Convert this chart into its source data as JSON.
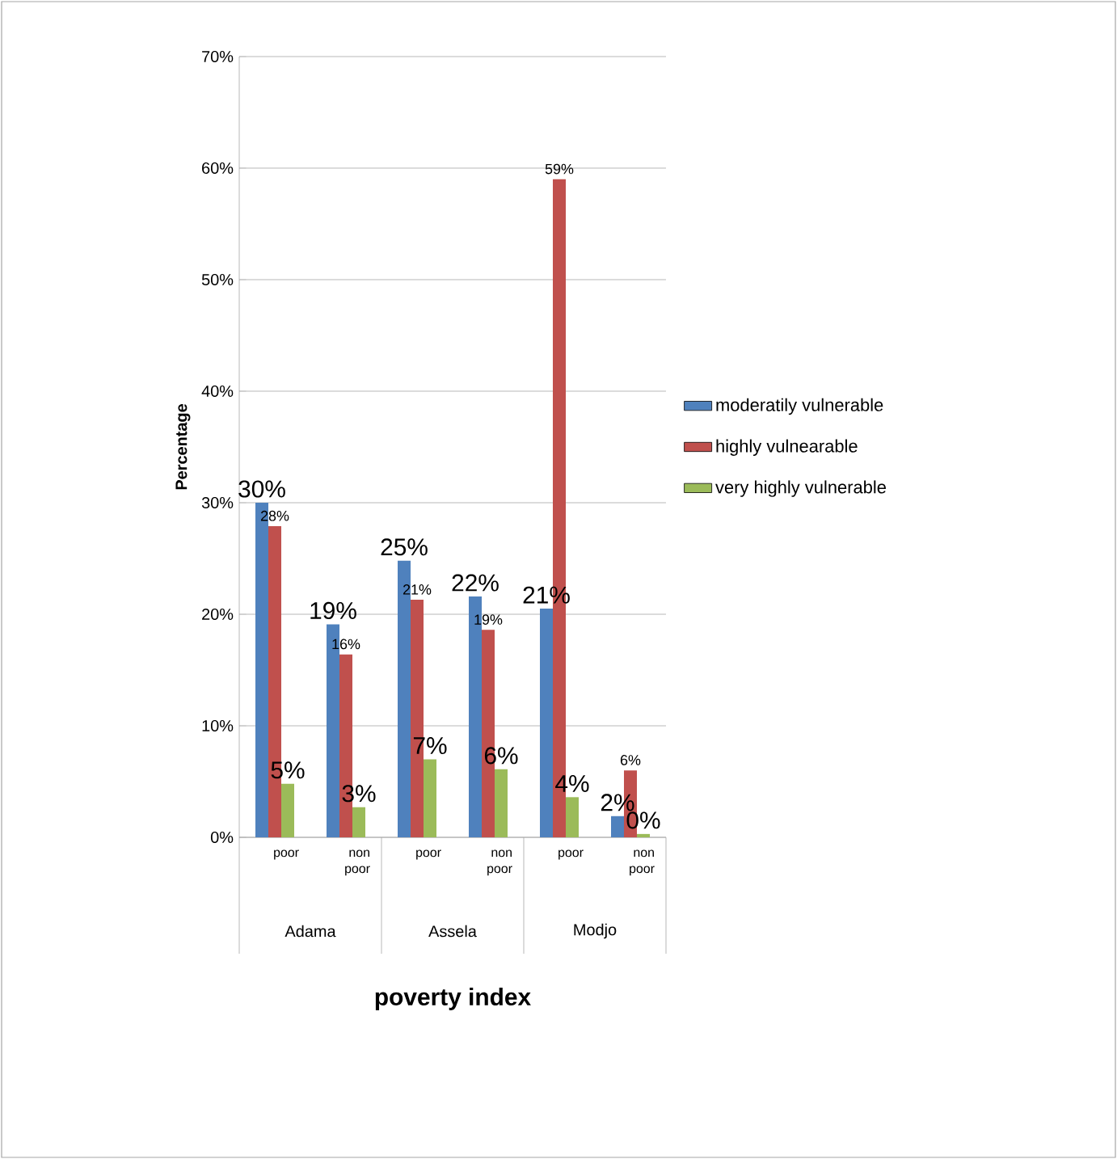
{
  "chart_data": {
    "type": "bar",
    "xlabel": "poverty index",
    "ylabel": "Percentage",
    "categories": [
      "poor",
      "non poor",
      "poor",
      "non poor",
      "poor",
      "non poor"
    ],
    "annotations": [
      "Adama",
      "Assela",
      "Modjo"
    ],
    "series": [
      {
        "name": "moderatily vulnerable",
        "color": "#4f81bd",
        "values": [
          30,
          19.1,
          24.8,
          21.6,
          20.5,
          1.9
        ],
        "value_labels": [
          "30%",
          "19%",
          "25%",
          "22%",
          "21%",
          "2%"
        ]
      },
      {
        "name": "highly vulnearable",
        "color": "#c0504d",
        "values": [
          27.9,
          16.4,
          21.3,
          18.6,
          59,
          6.0
        ],
        "value_labels": [
          "28%",
          "16%",
          "21%",
          "19%",
          "59%",
          "6%"
        ]
      },
      {
        "name": "very highly vulnerable",
        "color": "#9bbb59",
        "values": [
          4.8,
          2.7,
          7.0,
          6.1,
          3.6,
          0.3
        ],
        "value_labels": [
          "5%",
          "3%",
          "7%",
          "6%",
          "4%",
          "0%"
        ]
      }
    ],
    "ylim": [
      0,
      70
    ],
    "yticks": [
      {
        "value": 0,
        "label": "0%"
      },
      {
        "value": 10,
        "label": "10%"
      },
      {
        "value": 20,
        "label": "20%"
      },
      {
        "value": 30,
        "label": "30%"
      },
      {
        "value": 40,
        "label": "40%"
      },
      {
        "value": 50,
        "label": "50%"
      },
      {
        "value": 60,
        "label": "60%"
      },
      {
        "value": 70,
        "label": "70%"
      }
    ],
    "grid": "y",
    "legend": "right"
  }
}
